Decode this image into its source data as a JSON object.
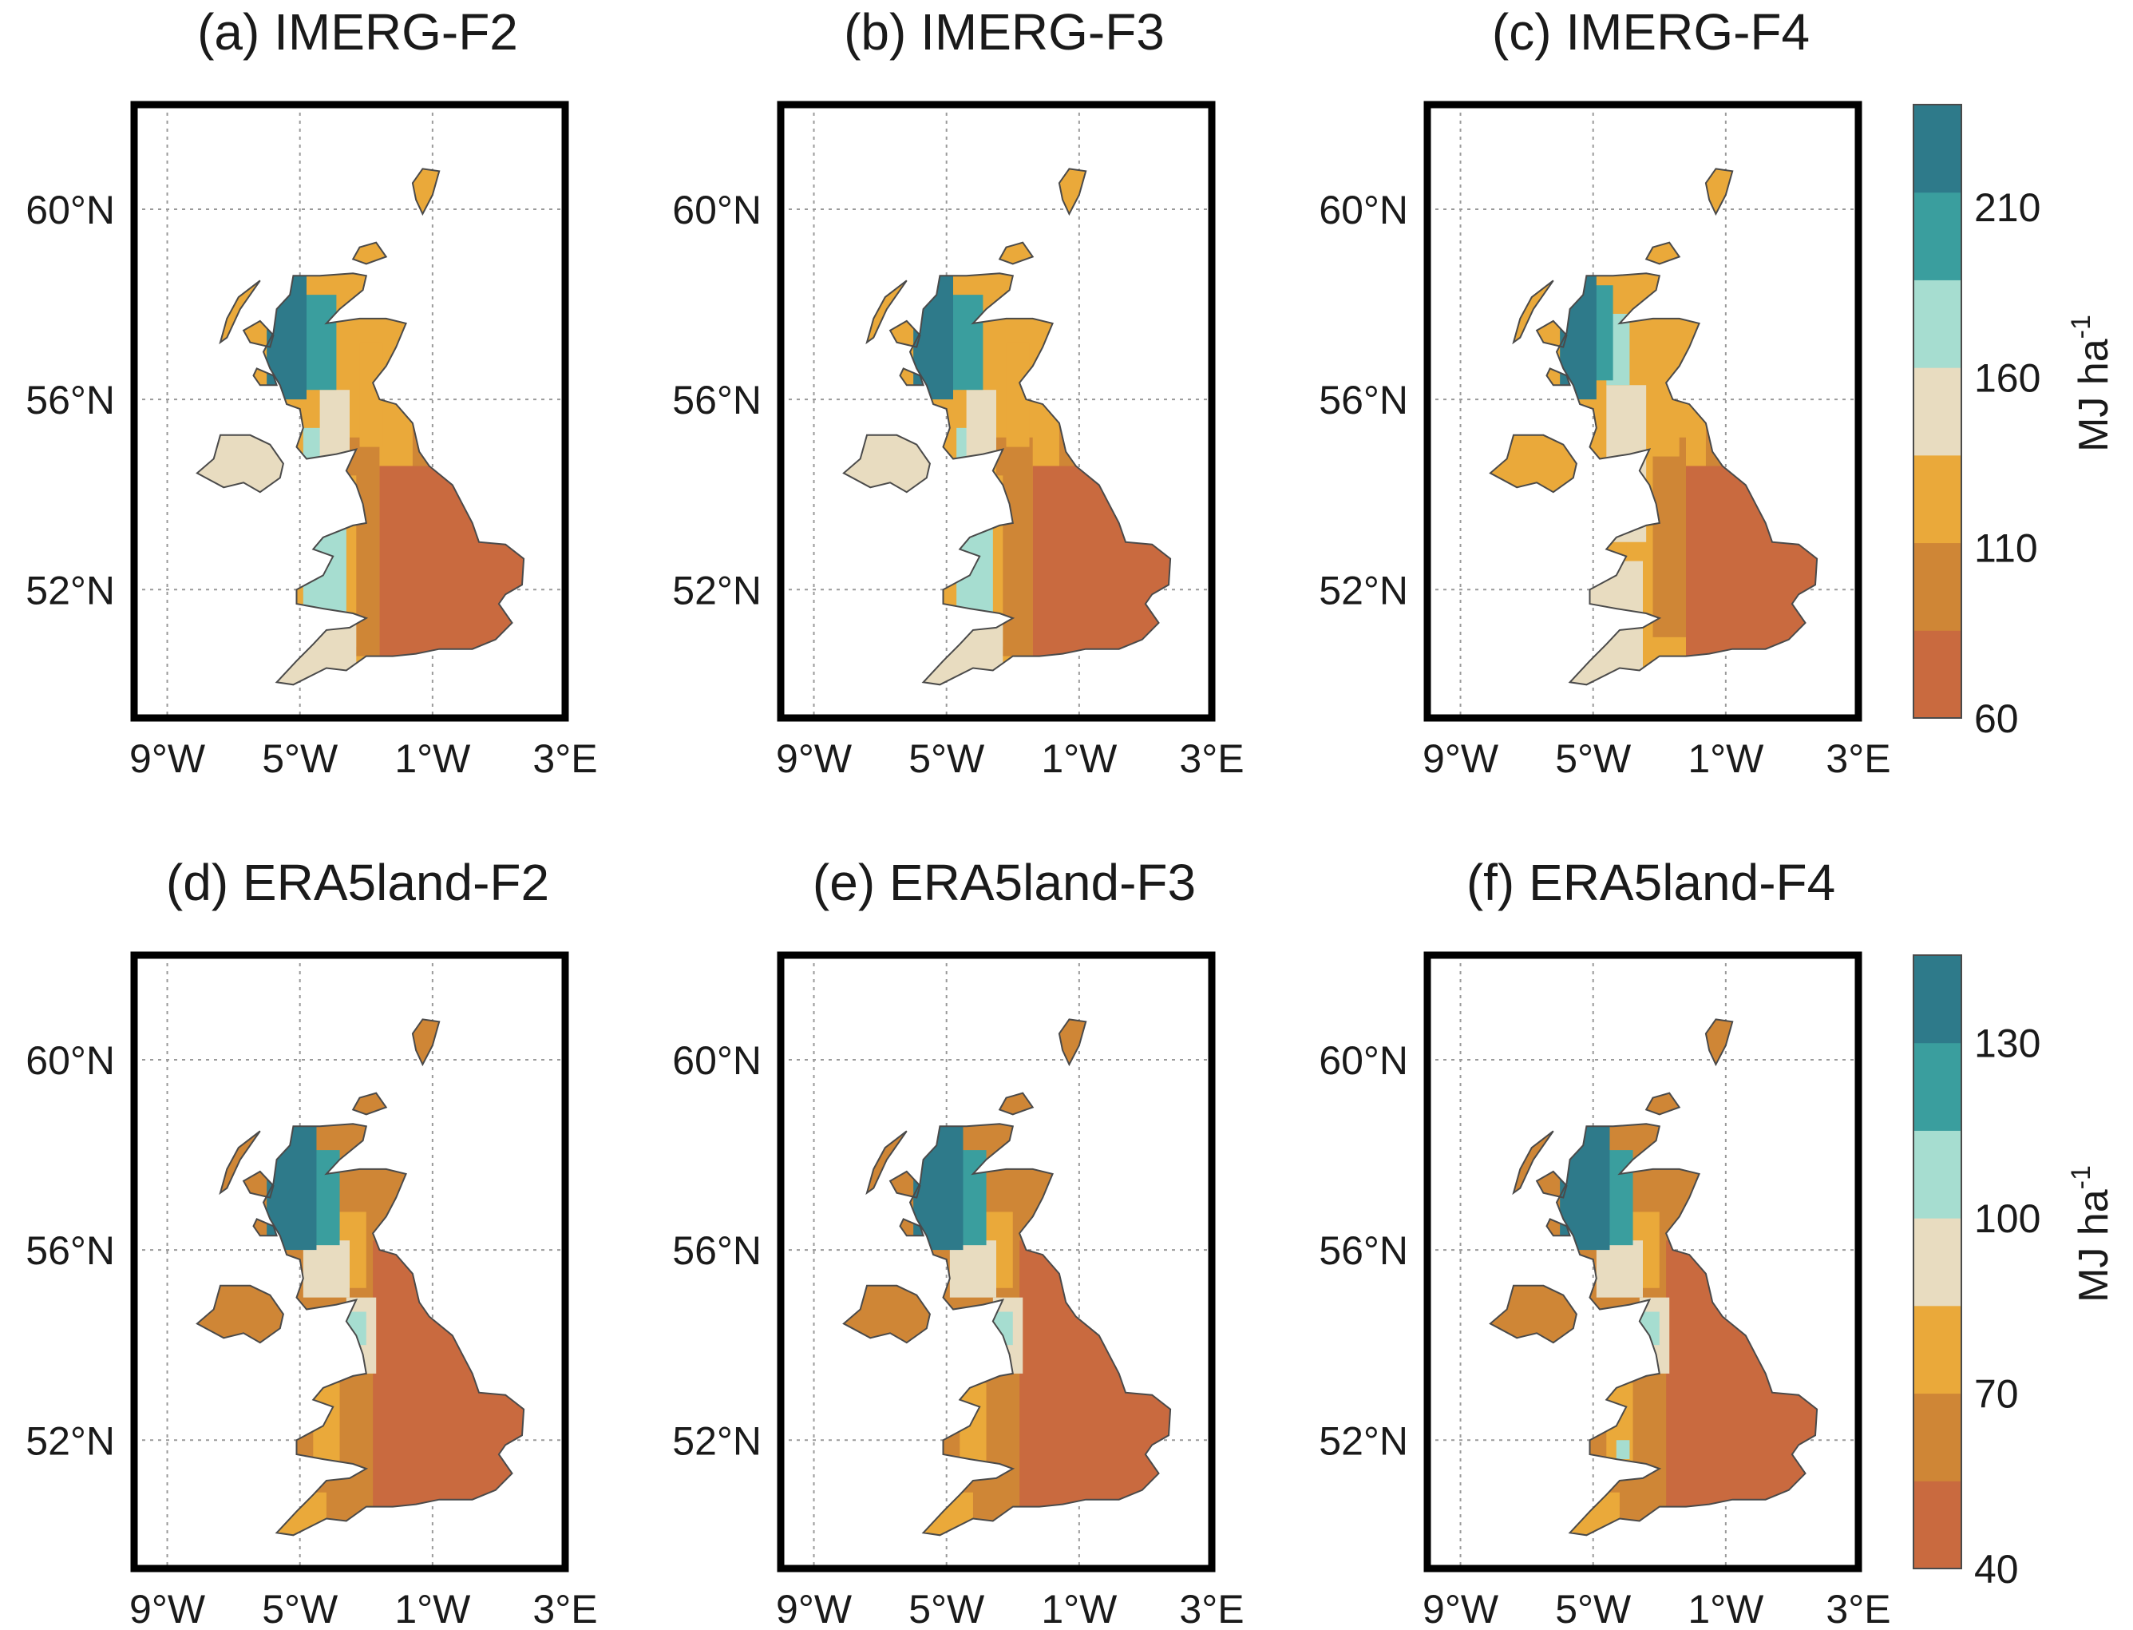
{
  "palette": {
    "darkest_teal": "#2e7a8a",
    "teal": "#3a9e9e",
    "light_teal": "#a6ddd0",
    "cream": "#e8dcc0",
    "amber": "#eaa93a",
    "orange": "#cf8636",
    "rust": "#c96a3f",
    "coast": "#4a4a4a",
    "grid": "#9a9a9a"
  },
  "axes": {
    "x_ticks": [
      "9°W",
      "5°W",
      "1°W",
      "3°E"
    ],
    "x_values": [
      -9,
      -5,
      -1,
      3
    ],
    "y_ticks": [
      "60°N",
      "56°N",
      "52°N"
    ],
    "y_values": [
      60,
      56,
      52
    ],
    "lon_range": [
      -10,
      3
    ],
    "lat_range": [
      49.3,
      62.2
    ]
  },
  "colorbars": [
    {
      "label": "MJ ha",
      "exponent": "-1",
      "ticks": [
        "210",
        "160",
        "110",
        "60"
      ],
      "tick_values": [
        210,
        160,
        110,
        60
      ],
      "range": [
        60,
        240
      ],
      "colors": [
        "#c96a3f",
        "#cf8636",
        "#eaa93a",
        "#e8dcc0",
        "#a6ddd0",
        "#3a9e9e",
        "#2e7a8a"
      ]
    },
    {
      "label": "MJ ha",
      "exponent": "-1",
      "ticks": [
        "130",
        "100",
        "70",
        "40"
      ],
      "tick_values": [
        130,
        100,
        70,
        40
      ],
      "range": [
        40,
        145
      ],
      "colors": [
        "#c96a3f",
        "#cf8636",
        "#eaa93a",
        "#e8dcc0",
        "#a6ddd0",
        "#3a9e9e",
        "#2e7a8a"
      ]
    }
  ],
  "panels": [
    {
      "title": "(a) IMERG-F2",
      "variant": "f2"
    },
    {
      "title": "(b) IMERG-F3",
      "variant": "f3"
    },
    {
      "title": "(c) IMERG-F4",
      "variant": "f4"
    },
    {
      "title": "(d) ERA5land-F2",
      "variant": "era"
    },
    {
      "title": "(e) ERA5land-F3",
      "variant": "era"
    },
    {
      "title": "(f) ERA5land-F4",
      "variant": "era4"
    }
  ]
}
